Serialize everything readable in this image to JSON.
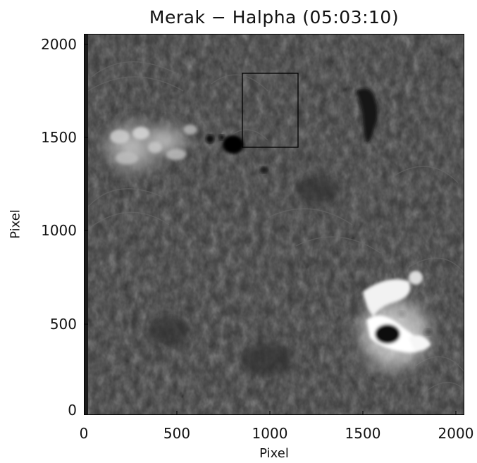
{
  "title": "Merak − Halpha (05:03:10)",
  "xlabel": "Pixel",
  "ylabel": "Pixel",
  "x_ticks": [
    "0",
    "500",
    "1000",
    "1500",
    "2000"
  ],
  "y_ticks": [
    "0",
    "500",
    "1000",
    "1500",
    "2000"
  ],
  "axis_range": {
    "x": [
      0,
      2048
    ],
    "y": [
      0,
      2048
    ]
  },
  "image": {
    "description_colors": {
      "background": "#3b3b3b",
      "bright": "#f2f2f2",
      "dark": "#0a0a0a",
      "box": "#000000"
    },
    "box_region": {
      "x": [
        870,
        1150
      ],
      "y": [
        1450,
        1850
      ]
    }
  }
}
